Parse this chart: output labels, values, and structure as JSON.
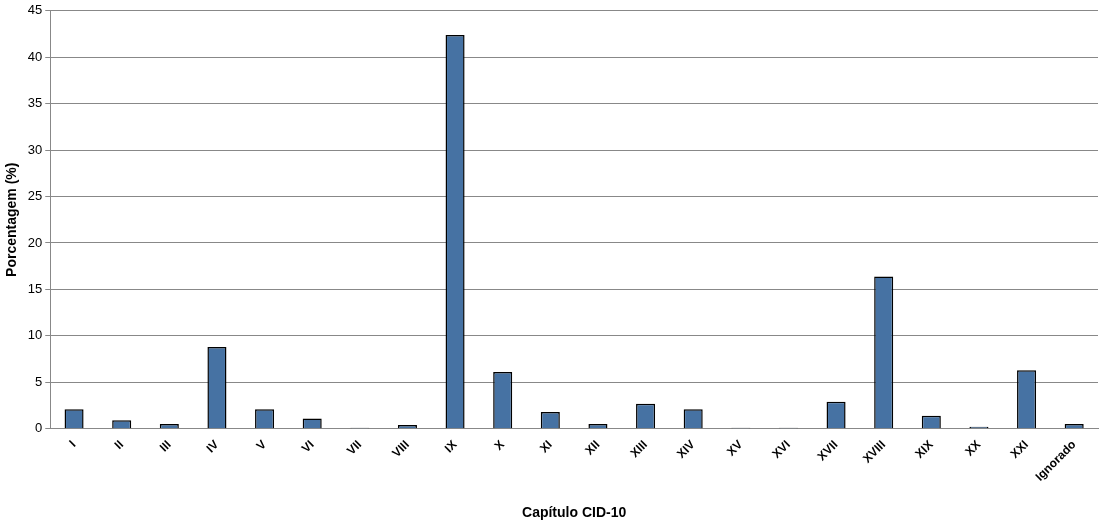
{
  "chart_data": {
    "type": "bar",
    "xlabel": "Capítulo CID-10",
    "ylabel": "Porcentagem (%)",
    "categories": [
      "I",
      "II",
      "III",
      "IV",
      "V",
      "VI",
      "VII",
      "VIII",
      "IX",
      "X",
      "XI",
      "XII",
      "XIII",
      "XIV",
      "XV",
      "XVI",
      "XVII",
      "XVIII",
      "XIX",
      "XX",
      "XXI",
      "Ignorado"
    ],
    "values": [
      2.1,
      0.9,
      0.5,
      8.8,
      2.1,
      1.1,
      0.1,
      0.4,
      42.4,
      6.1,
      1.8,
      0.5,
      2.7,
      2.1,
      0.1,
      0.1,
      2.9,
      16.4,
      1.4,
      0.2,
      6.3,
      0.5
    ],
    "color": "#4672a3",
    "ylim": [
      0,
      45
    ],
    "yticks": [
      0,
      5,
      10,
      15,
      20,
      25,
      30,
      35,
      40,
      45
    ],
    "grid": "y",
    "legend": false
  }
}
